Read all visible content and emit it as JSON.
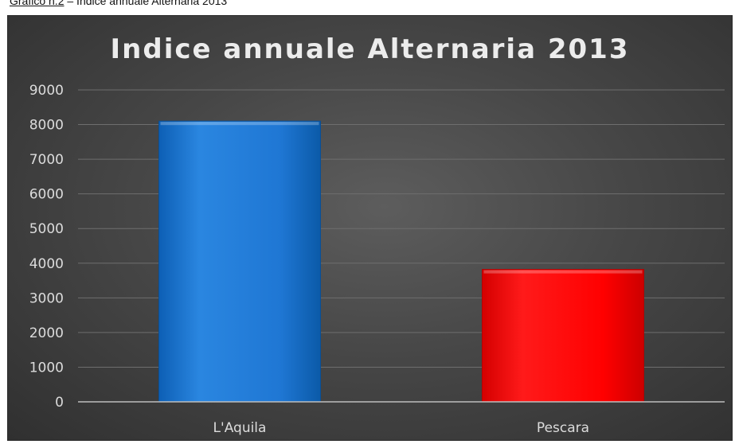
{
  "caption": {
    "ref": "Grafico n.2",
    "text": " – Indice annuale Alternaria 2013"
  },
  "chart_data": {
    "type": "bar",
    "title": "Indice annuale Alternaria 2013",
    "xlabel": "",
    "ylabel": "",
    "categories": [
      "L'Aquila",
      "Pescara"
    ],
    "values": [
      8100,
      3820
    ],
    "bar_colors": [
      "#1f77d4",
      "#ff0000"
    ],
    "ylim": [
      0,
      9000
    ],
    "yticks": [
      0,
      1000,
      2000,
      3000,
      4000,
      5000,
      6000,
      7000,
      8000,
      9000
    ],
    "grid": true,
    "legend": "none"
  }
}
